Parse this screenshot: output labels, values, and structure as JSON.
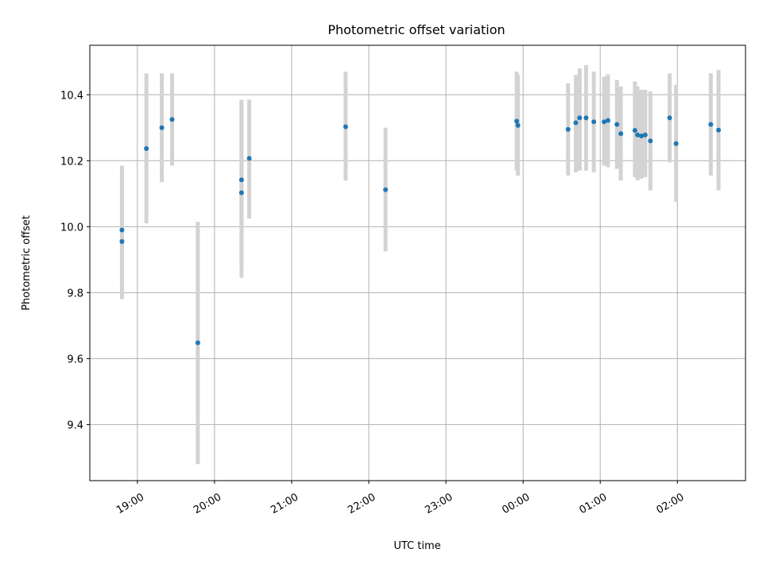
{
  "chart_data": {
    "type": "scatter",
    "title": "Photometric offset variation",
    "xlabel": "UTC time",
    "ylabel": "Photometric offset",
    "x_axis": {
      "type": "time",
      "range": [
        "18:23",
        "02:53"
      ],
      "ticks": [
        "19:00",
        "20:00",
        "21:00",
        "22:00",
        "23:00",
        "00:00",
        "01:00",
        "02:00"
      ]
    },
    "y_axis": {
      "range": [
        9.23,
        10.55
      ],
      "ticks": [
        9.4,
        9.6,
        9.8,
        10.0,
        10.2,
        10.4
      ],
      "tick_labels": [
        "9.4",
        "9.6",
        "9.8",
        "10.0",
        "10.2",
        "10.4"
      ]
    },
    "grid": true,
    "colors": {
      "point": "#1f77b4",
      "error_bar": "#d3d3d3"
    },
    "series": [
      {
        "points": [
          {
            "t": "18:48",
            "y": 9.99,
            "lo": 9.84,
            "hi": 10.14
          },
          {
            "t": "18:48",
            "y": 9.955,
            "lo": 9.78,
            "hi": 10.185
          },
          {
            "t": "19:07",
            "y": 10.237,
            "lo": 10.01,
            "hi": 10.465
          },
          {
            "t": "19:19",
            "y": 10.3,
            "lo": 10.135,
            "hi": 10.465
          },
          {
            "t": "19:27",
            "y": 10.325,
            "lo": 10.185,
            "hi": 10.465
          },
          {
            "t": "19:47",
            "y": 9.648,
            "lo": 9.28,
            "hi": 10.015
          },
          {
            "t": "20:21",
            "y": 10.103,
            "lo": 9.845,
            "hi": 10.385
          },
          {
            "t": "20:21",
            "y": 10.142,
            "lo": 9.9,
            "hi": 10.385
          },
          {
            "t": "20:27",
            "y": 10.207,
            "lo": 10.025,
            "hi": 10.385
          },
          {
            "t": "21:42",
            "y": 10.303,
            "lo": 10.14,
            "hi": 10.47
          },
          {
            "t": "22:13",
            "y": 10.112,
            "lo": 9.925,
            "hi": 10.3
          },
          {
            "t": "23:55",
            "y": 10.32,
            "lo": 10.17,
            "hi": 10.47
          },
          {
            "t": "23:56",
            "y": 10.307,
            "lo": 10.155,
            "hi": 10.46
          },
          {
            "t": "00:35",
            "y": 10.295,
            "lo": 10.155,
            "hi": 10.435
          },
          {
            "t": "00:41",
            "y": 10.315,
            "lo": 10.165,
            "hi": 10.46
          },
          {
            "t": "00:44",
            "y": 10.33,
            "lo": 10.17,
            "hi": 10.48
          },
          {
            "t": "00:49",
            "y": 10.33,
            "lo": 10.17,
            "hi": 10.49
          },
          {
            "t": "00:55",
            "y": 10.318,
            "lo": 10.165,
            "hi": 10.47
          },
          {
            "t": "01:03",
            "y": 10.318,
            "lo": 10.185,
            "hi": 10.455
          },
          {
            "t": "01:06",
            "y": 10.322,
            "lo": 10.18,
            "hi": 10.462
          },
          {
            "t": "01:13",
            "y": 10.31,
            "lo": 10.175,
            "hi": 10.445
          },
          {
            "t": "01:16",
            "y": 10.282,
            "lo": 10.14,
            "hi": 10.425
          },
          {
            "t": "01:27",
            "y": 10.292,
            "lo": 10.15,
            "hi": 10.44
          },
          {
            "t": "01:29",
            "y": 10.278,
            "lo": 10.14,
            "hi": 10.425
          },
          {
            "t": "01:32",
            "y": 10.275,
            "lo": 10.145,
            "hi": 10.415
          },
          {
            "t": "01:35",
            "y": 10.278,
            "lo": 10.15,
            "hi": 10.415
          },
          {
            "t": "01:39",
            "y": 10.26,
            "lo": 10.11,
            "hi": 10.41
          },
          {
            "t": "01:54",
            "y": 10.33,
            "lo": 10.195,
            "hi": 10.465
          },
          {
            "t": "01:59",
            "y": 10.252,
            "lo": 10.075,
            "hi": 10.43
          },
          {
            "t": "02:26",
            "y": 10.31,
            "lo": 10.155,
            "hi": 10.465
          },
          {
            "t": "02:32",
            "y": 10.293,
            "lo": 10.11,
            "hi": 10.475
          }
        ]
      }
    ]
  }
}
